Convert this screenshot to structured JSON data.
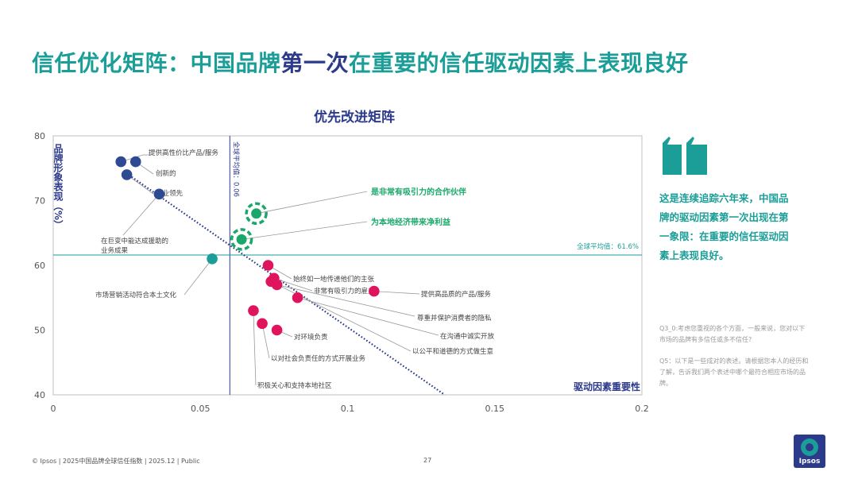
{
  "header": {
    "title_part1": "信任优化矩阵：中国品牌",
    "title_part2": "第一次",
    "title_part3": "在重要的信任驱动因素上表现良好"
  },
  "colors": {
    "teal": "#1a9e97",
    "navy": "#2c3a8c",
    "pink": "#e0145c",
    "green": "#1aa86a",
    "blue_dot": "#2e4a93"
  },
  "chart_data": {
    "type": "scatter",
    "title": "优先改进矩阵",
    "xlabel": "驱动因素重要性",
    "ylabel": "品牌形象表现（%）",
    "xlim": [
      0,
      0.2
    ],
    "ylim": [
      40,
      80
    ],
    "x_ticks": [
      "0",
      "0.05",
      "0.1",
      "0.15",
      "0.2"
    ],
    "y_ticks": [
      "40",
      "50",
      "60",
      "70",
      "80"
    ],
    "grid": false,
    "ref_lines": {
      "vertical_label": "全球平均值：0.06",
      "vertical_value": 0.06,
      "horizontal_label": "全球平均值：61.6%",
      "horizontal_value": 61.6
    },
    "trend_line": {
      "from": [
        0.024,
        74.5
      ],
      "to": [
        0.133,
        40
      ]
    },
    "points": [
      {
        "label": "提供高性价比产品/服务",
        "x": 0.023,
        "y": 76,
        "group": "navy"
      },
      {
        "label": "创新的",
        "x": 0.028,
        "y": 76,
        "group": "navy"
      },
      {
        "label": "行业领先",
        "x": 0.025,
        "y": 74,
        "group": "navy"
      },
      {
        "label": "在巨变中能达成援助的业务成果",
        "x": 0.036,
        "y": 71,
        "group": "navy"
      },
      {
        "label": "是非常有吸引力的合作伙伴",
        "x": 0.069,
        "y": 68,
        "group": "highlight"
      },
      {
        "label": "为本地经济带来净利益",
        "x": 0.064,
        "y": 64,
        "group": "highlight"
      },
      {
        "label": "市场营销活动符合本土文化",
        "x": 0.054,
        "y": 61,
        "group": "teal"
      },
      {
        "label": "始终如一地传递他们的主张",
        "x": 0.073,
        "y": 60,
        "group": "pink"
      },
      {
        "label": "非常有吸引力的雇主",
        "x": 0.075,
        "y": 58,
        "group": "pink"
      },
      {
        "label": "提供高品质的产品/服务",
        "x": 0.109,
        "y": 56,
        "group": "pink"
      },
      {
        "label": "尊重并保护消费者的隐私",
        "x": 0.076,
        "y": 57,
        "group": "pink"
      },
      {
        "label": "在沟通中诚实开放",
        "x": 0.083,
        "y": 55,
        "group": "pink"
      },
      {
        "label": "以公平和道德的方式做生意",
        "x": 0.074,
        "y": 57.5,
        "group": "pink"
      },
      {
        "label": "对环境负责",
        "x": 0.076,
        "y": 50,
        "group": "pink"
      },
      {
        "label": "以对社会负责任的方式开展业务",
        "x": 0.071,
        "y": 51,
        "group": "pink"
      },
      {
        "label": "积极关心和支持本地社区",
        "x": 0.068,
        "y": 53,
        "group": "pink"
      }
    ]
  },
  "sidebar": {
    "quote_icon": "quote-mark-icon",
    "quote": "这是连续追踪六年来，中国品牌的驱动因素第一次出现在第一象限：在重要的信任驱动因素上表现良好。",
    "note1": "Q3_0:考虑您重视的各个方面，一般来说，您对以下市场的品牌有多信任或多不信任?",
    "note2": "Q5：以下是一些成对的表述。请根据您本人的经历和了解，告诉我们两个表述中哪个最符合相应市场的品牌。"
  },
  "footer": {
    "text": "© Ipsos | 2025中国品牌全球信任指数 | 2025.12 | Public",
    "page": "27",
    "logo": "Ipsos"
  }
}
